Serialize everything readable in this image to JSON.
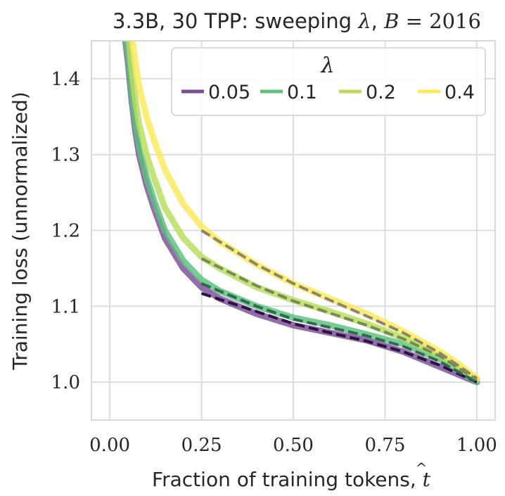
{
  "chart_data": {
    "type": "line",
    "title": {
      "prefix": "3.3B, 30 TPP: sweeping ",
      "lambda": "λ",
      "sep": ", ",
      "bvar": "B",
      "eq": " = 2016"
    },
    "xlabel": {
      "text": "Fraction of training tokens, ",
      "var": "t",
      "hat": "^"
    },
    "ylabel": "Training loss (unnormalized)",
    "xlim": [
      -0.05,
      1.05
    ],
    "ylim": [
      0.95,
      1.45
    ],
    "xticks": [
      0.0,
      0.25,
      0.5,
      0.75,
      1.0
    ],
    "xtick_labels": [
      "0.00",
      "0.25",
      "0.50",
      "0.75",
      "1.00"
    ],
    "yticks": [
      1.0,
      1.1,
      1.2,
      1.3,
      1.4
    ],
    "ytick_labels": [
      "1.0",
      "1.1",
      "1.2",
      "1.3",
      "1.4"
    ],
    "grid": true,
    "legend": {
      "title": "λ",
      "placement": "top-right",
      "ncol": 4
    },
    "series": [
      {
        "name": "0.05",
        "color": "#7b4d96",
        "fit_color": "#2b1242",
        "x": [
          0.04,
          0.05,
          0.06,
          0.07,
          0.08,
          0.1,
          0.12,
          0.15,
          0.2,
          0.25,
          0.3,
          0.4,
          0.5,
          0.6,
          0.7,
          0.8,
          0.9,
          0.95,
          1.0
        ],
        "y": [
          1.46,
          1.42,
          1.37,
          1.33,
          1.3,
          1.26,
          1.23,
          1.19,
          1.15,
          1.125,
          1.11,
          1.09,
          1.075,
          1.065,
          1.055,
          1.04,
          1.02,
          1.01,
          1.0
        ],
        "fit_x": [
          0.25,
          0.4,
          0.5,
          0.6,
          0.7,
          0.8,
          0.9,
          1.0
        ],
        "fit_y": [
          1.117,
          1.093,
          1.077,
          1.065,
          1.054,
          1.04,
          1.022,
          1.0
        ]
      },
      {
        "name": "0.1",
        "color": "#5cc07e",
        "fit_color": "#2e6b4a",
        "x": [
          0.04,
          0.05,
          0.06,
          0.07,
          0.08,
          0.1,
          0.12,
          0.15,
          0.2,
          0.25,
          0.3,
          0.4,
          0.5,
          0.6,
          0.7,
          0.8,
          0.9,
          0.95,
          1.0
        ],
        "y": [
          1.46,
          1.43,
          1.38,
          1.34,
          1.31,
          1.27,
          1.24,
          1.2,
          1.16,
          1.135,
          1.12,
          1.1,
          1.085,
          1.075,
          1.063,
          1.05,
          1.03,
          1.015,
          1.0
        ],
        "fit_x": [
          0.25,
          0.4,
          0.5,
          0.6,
          0.7,
          0.8,
          0.9,
          1.0
        ],
        "fit_y": [
          1.13,
          1.1,
          1.083,
          1.072,
          1.061,
          1.047,
          1.027,
          1.0
        ]
      },
      {
        "name": "0.2",
        "color": "#b7dd5b",
        "fit_color": "#7a8a55",
        "x": [
          0.05,
          0.06,
          0.07,
          0.08,
          0.1,
          0.12,
          0.15,
          0.2,
          0.25,
          0.3,
          0.4,
          0.5,
          0.6,
          0.7,
          0.8,
          0.9,
          0.95,
          1.0
        ],
        "y": [
          1.46,
          1.41,
          1.37,
          1.34,
          1.3,
          1.27,
          1.23,
          1.19,
          1.165,
          1.15,
          1.125,
          1.108,
          1.093,
          1.077,
          1.058,
          1.035,
          1.02,
          1.003
        ],
        "fit_x": [
          0.25,
          0.4,
          0.5,
          0.6,
          0.7,
          0.8,
          0.9,
          1.0
        ],
        "fit_y": [
          1.163,
          1.127,
          1.107,
          1.091,
          1.075,
          1.057,
          1.034,
          1.003
        ]
      },
      {
        "name": "0.4",
        "color": "#fbe85a",
        "fit_color": "#8a8766",
        "x": [
          0.06,
          0.07,
          0.08,
          0.1,
          0.12,
          0.15,
          0.2,
          0.25,
          0.3,
          0.4,
          0.5,
          0.6,
          0.7,
          0.8,
          0.9,
          0.95,
          1.0
        ],
        "y": [
          1.46,
          1.42,
          1.39,
          1.35,
          1.32,
          1.28,
          1.235,
          1.205,
          1.185,
          1.155,
          1.13,
          1.11,
          1.09,
          1.067,
          1.04,
          1.024,
          1.005
        ],
        "fit_x": [
          0.25,
          0.4,
          0.5,
          0.6,
          0.7,
          0.8,
          0.9,
          1.0
        ],
        "fit_y": [
          1.2,
          1.155,
          1.13,
          1.108,
          1.087,
          1.065,
          1.038,
          1.005
        ]
      }
    ]
  }
}
